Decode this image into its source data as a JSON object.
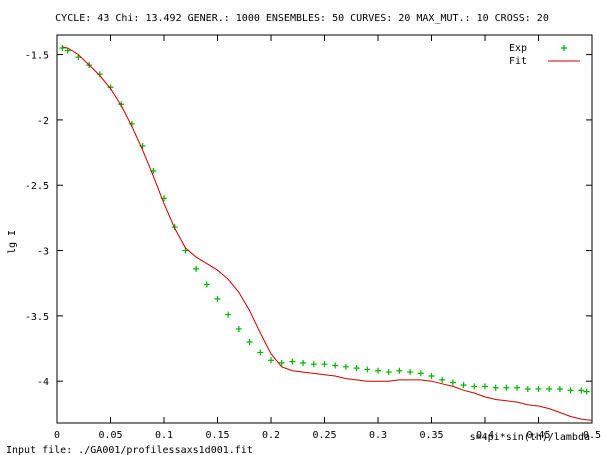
{
  "header": {
    "title": "CYCLE:  43 Chi:  13.492 GENER.: 1000 ENSEMBLES:  50 CURVES:  20 MAX_MUT.: 10 CROSS:  20"
  },
  "footer": {
    "input_file": "Input  file:  ./GA001/profilessaxs1d001.fit"
  },
  "colors": {
    "exp": "#00b400",
    "fit": "#cc0000",
    "axis": "#000000"
  },
  "chart_data": {
    "type": "line",
    "title": "CYCLE:  43 Chi:  13.492 GENER.: 1000 ENSEMBLES:  50 CURVES:  20 MAX_MUT.: 10 CROSS:  20",
    "xlabel": "s=4pi*sin(th)/lambda",
    "ylabel": "lg I",
    "xlim": [
      0,
      0.5
    ],
    "ylim": [
      -4.32,
      -1.35
    ],
    "xticks": [
      0,
      0.05,
      0.1,
      0.15,
      0.2,
      0.25,
      0.3,
      0.35,
      0.4,
      0.45,
      0.5
    ],
    "xtick_labels": [
      "0",
      "0.05",
      "0.1",
      "0.15",
      "0.2",
      "0.25",
      "0.3",
      "0.35",
      "0.4",
      "0.45",
      "0.5"
    ],
    "yticks": [
      -1.5,
      -2,
      -2.5,
      -3,
      -3.5,
      -4
    ],
    "ytick_labels": [
      "-1.5",
      "-2",
      "-2.5",
      "-3",
      "-3.5",
      "-4"
    ],
    "grid": false,
    "legend_position": "top-right",
    "series": [
      {
        "name": "Exp",
        "style": "markers",
        "marker": "+",
        "x": [
          0.005,
          0.01,
          0.02,
          0.03,
          0.04,
          0.05,
          0.06,
          0.07,
          0.08,
          0.09,
          0.1,
          0.11,
          0.12,
          0.13,
          0.14,
          0.15,
          0.16,
          0.17,
          0.18,
          0.19,
          0.2,
          0.21,
          0.22,
          0.23,
          0.24,
          0.25,
          0.26,
          0.27,
          0.28,
          0.29,
          0.3,
          0.31,
          0.32,
          0.33,
          0.34,
          0.35,
          0.36,
          0.37,
          0.38,
          0.39,
          0.4,
          0.41,
          0.42,
          0.43,
          0.44,
          0.45,
          0.46,
          0.47,
          0.48,
          0.49,
          0.495
        ],
        "y": [
          -1.45,
          -1.47,
          -1.52,
          -1.58,
          -1.65,
          -1.75,
          -1.88,
          -2.03,
          -2.2,
          -2.39,
          -2.6,
          -2.82,
          -3.0,
          -3.14,
          -3.26,
          -3.37,
          -3.49,
          -3.6,
          -3.7,
          -3.78,
          -3.84,
          -3.86,
          -3.85,
          -3.86,
          -3.87,
          -3.87,
          -3.88,
          -3.89,
          -3.9,
          -3.91,
          -3.92,
          -3.93,
          -3.92,
          -3.93,
          -3.94,
          -3.96,
          -3.99,
          -4.01,
          -4.03,
          -4.04,
          -4.04,
          -4.05,
          -4.05,
          -4.05,
          -4.06,
          -4.06,
          -4.06,
          -4.06,
          -4.07,
          -4.07,
          -4.08
        ]
      },
      {
        "name": "Fit",
        "style": "line",
        "x": [
          0.005,
          0.01,
          0.02,
          0.03,
          0.04,
          0.05,
          0.06,
          0.07,
          0.08,
          0.09,
          0.1,
          0.11,
          0.12,
          0.13,
          0.14,
          0.15,
          0.16,
          0.17,
          0.18,
          0.19,
          0.2,
          0.21,
          0.22,
          0.23,
          0.24,
          0.25,
          0.26,
          0.27,
          0.28,
          0.29,
          0.3,
          0.31,
          0.32,
          0.33,
          0.34,
          0.35,
          0.36,
          0.37,
          0.38,
          0.39,
          0.4,
          0.41,
          0.42,
          0.43,
          0.44,
          0.45,
          0.46,
          0.47,
          0.48,
          0.49,
          0.5
        ],
        "y": [
          -1.44,
          -1.45,
          -1.5,
          -1.58,
          -1.66,
          -1.76,
          -1.89,
          -2.05,
          -2.23,
          -2.43,
          -2.64,
          -2.83,
          -2.98,
          -3.05,
          -3.1,
          -3.15,
          -3.22,
          -3.32,
          -3.46,
          -3.63,
          -3.79,
          -3.89,
          -3.92,
          -3.93,
          -3.94,
          -3.95,
          -3.96,
          -3.98,
          -3.99,
          -4.0,
          -4.0,
          -4.0,
          -3.99,
          -3.99,
          -3.99,
          -4.0,
          -4.02,
          -4.04,
          -4.07,
          -4.09,
          -4.12,
          -4.14,
          -4.15,
          -4.16,
          -4.18,
          -4.19,
          -4.21,
          -4.24,
          -4.27,
          -4.29,
          -4.3
        ]
      }
    ]
  }
}
